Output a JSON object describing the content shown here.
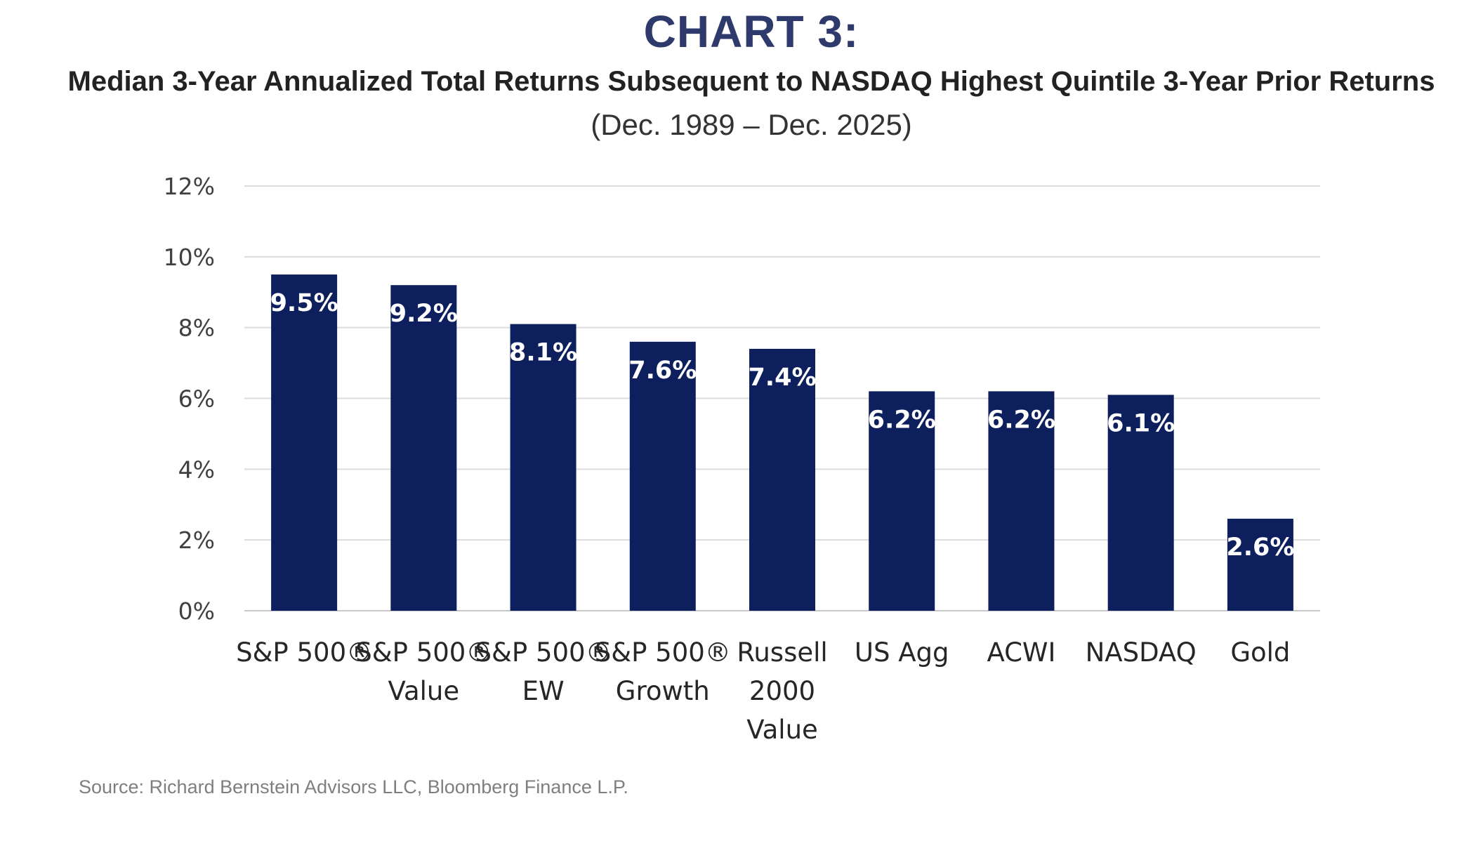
{
  "chart_data": {
    "type": "bar",
    "title": "CHART 3:",
    "subtitle": "Median 3-Year Annualized Total Returns Subsequent to NASDAQ Highest Quintile 3-Year Prior Returns",
    "date_range": "(Dec. 1989 – Dec. 2025)",
    "categories": [
      [
        "S&P 500®"
      ],
      [
        "S&P 500®",
        "Value"
      ],
      [
        "S&P 500®",
        "EW"
      ],
      [
        "S&P 500®",
        "Growth"
      ],
      [
        "Russell",
        "2000",
        "Value"
      ],
      [
        "US Agg"
      ],
      [
        "ACWI"
      ],
      [
        "NASDAQ"
      ],
      [
        "Gold"
      ]
    ],
    "values": [
      9.5,
      9.2,
      8.1,
      7.6,
      7.4,
      6.2,
      6.2,
      6.1,
      2.6
    ],
    "data_labels": [
      "9.5%",
      "9.2%",
      "8.1%",
      "7.6%",
      "7.4%",
      "6.2%",
      "6.2%",
      "6.1%",
      "2.6%"
    ],
    "ylim": [
      0,
      12
    ],
    "yticks": [
      0,
      2,
      4,
      6,
      8,
      10,
      12
    ],
    "ytick_labels": [
      "0%",
      "2%",
      "4%",
      "6%",
      "8%",
      "10%",
      "12%"
    ],
    "xlabel": "",
    "ylabel": "",
    "grid": true,
    "legend": "none",
    "bar_color": "#0d1f5c",
    "title_color": "#2e3a6b"
  },
  "source": "Source: Richard Bernstein Advisors LLC, Bloomberg Finance L.P."
}
